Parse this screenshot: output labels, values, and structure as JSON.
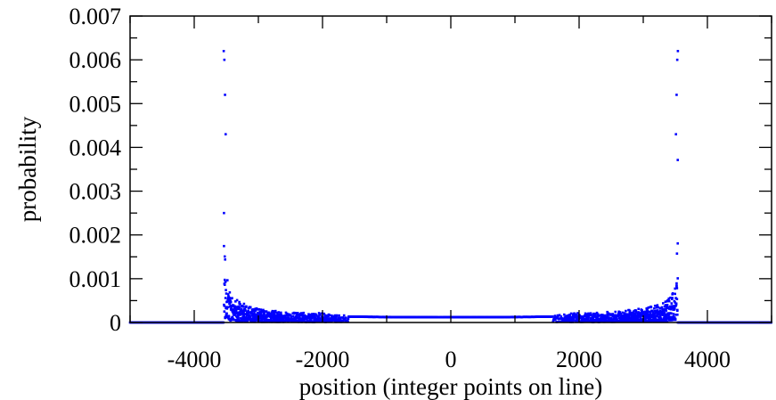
{
  "chart_data": {
    "type": "scatter",
    "title": "",
    "xlabel": "position (integer points on line)",
    "ylabel": "probability",
    "xlim": [
      -5000,
      5000
    ],
    "ylim": [
      0,
      0.007
    ],
    "x_ticks": [
      -4000,
      -2000,
      0,
      2000,
      4000
    ],
    "x_tick_labels": [
      "-4000",
      "-2000",
      "0",
      "2000",
      "4000"
    ],
    "x_minor_step": 1000,
    "y_ticks": [
      0,
      0.001,
      0.002,
      0.003,
      0.004,
      0.005,
      0.006,
      0.007
    ],
    "y_tick_labels": [
      "0",
      "0.001",
      "0.002",
      "0.003",
      "0.004",
      "0.005",
      "0.006",
      "0.007"
    ],
    "y_minor_step": 0.0005,
    "grid": false,
    "marker_color": "#0000ff",
    "series": [
      {
        "support_edges": [
          -3540,
          3540
        ],
        "peak_points": [
          {
            "x": -3540,
            "y": 0.0062
          },
          {
            "x": -3530,
            "y": 0.006
          },
          {
            "x": -3520,
            "y": 0.0052
          },
          {
            "x": -3510,
            "y": 0.0043
          },
          {
            "x": 3510,
            "y": 0.0043
          },
          {
            "x": 3520,
            "y": 0.0052
          },
          {
            "x": 3530,
            "y": 0.006
          },
          {
            "x": 3540,
            "y": 0.0062
          }
        ],
        "center_level": 0.00012,
        "outside_level": 0
      }
    ]
  }
}
